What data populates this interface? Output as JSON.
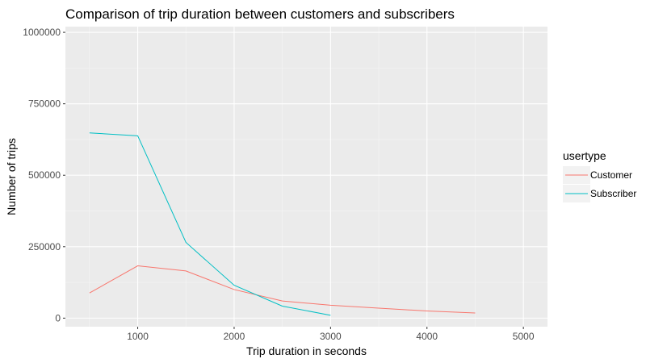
{
  "chart_data": {
    "type": "line",
    "title": "Comparison of trip duration between customers and subscribers",
    "xlabel": "Trip duration in seconds",
    "ylabel": "Number of trips",
    "xlim": [
      250,
      5250
    ],
    "ylim": [
      -30000,
      1020000
    ],
    "x_ticks": [
      1000,
      2000,
      3000,
      4000,
      5000
    ],
    "x_tick_labels": [
      "1000",
      "2000",
      "3000",
      "4000",
      "5000"
    ],
    "x_minor_ticks": [
      500,
      1500,
      2500,
      3500,
      4500
    ],
    "y_ticks": [
      0,
      250000,
      500000,
      750000,
      1000000
    ],
    "y_tick_labels": [
      "0",
      "250000",
      "500000",
      "750000",
      "1000000"
    ],
    "y_minor_ticks": [
      125000,
      375000,
      625000,
      875000
    ],
    "legend": {
      "title": "usertype",
      "position": "right"
    },
    "series": [
      {
        "name": "Customer",
        "color": "#F8766D",
        "x": [
          500,
          1000,
          1500,
          2000,
          2500,
          3000,
          3500,
          4000,
          4500
        ],
        "y": [
          88000,
          183000,
          165000,
          100000,
          60000,
          45000,
          35000,
          25000,
          18000
        ]
      },
      {
        "name": "Subscriber",
        "color": "#00BFC4",
        "x": [
          500,
          1000,
          1500,
          2000,
          2500,
          3000
        ],
        "y": [
          648000,
          638000,
          265000,
          115000,
          42000,
          10000
        ]
      }
    ]
  }
}
